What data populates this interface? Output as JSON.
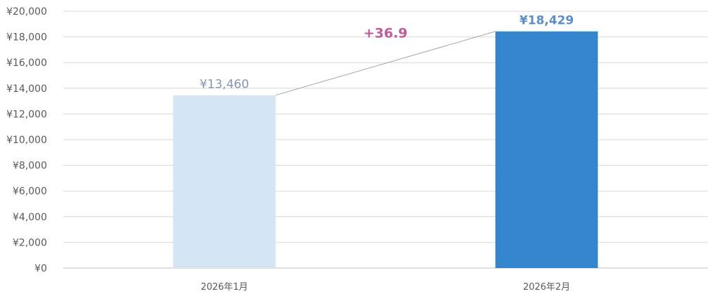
{
  "chart_data": {
    "type": "bar",
    "categories": [
      "2026年1月",
      "2026年2月"
    ],
    "values": [
      13460,
      18429
    ],
    "value_labels": [
      "¥13,460",
      "¥18,429"
    ],
    "difference_label": "+36.9",
    "y_ticks": [
      "¥0",
      "¥2,000",
      "¥4,000",
      "¥6,000",
      "¥8,000",
      "¥10,000",
      "¥12,000",
      "¥14,000",
      "¥16,000",
      "¥18,000",
      "¥20,000"
    ],
    "ylim": [
      0,
      20000
    ],
    "grid": true,
    "legend": "none",
    "title": "",
    "xlabel": "",
    "ylabel": "",
    "colors": {
      "bar_1": "#d4e6f3",
      "bar_2": "#3386cc",
      "grid": "#d9d9d9",
      "connector": "#a6a6a6",
      "difference": "#c05a9a"
    }
  }
}
